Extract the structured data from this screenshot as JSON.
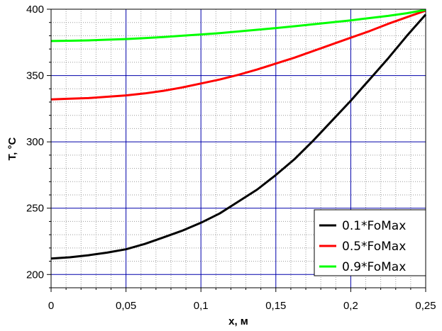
{
  "chart_data": {
    "type": "line",
    "xlabel": "x, м",
    "ylabel": "T, °C",
    "xlim": [
      0,
      0.25
    ],
    "ylim": [
      190,
      400
    ],
    "x_ticks": [
      "0",
      "0,05",
      "0,1",
      "0,15",
      "0,2",
      "0,25"
    ],
    "y_ticks": [
      "200",
      "250",
      "300",
      "350",
      "400"
    ],
    "grid": true,
    "legend_position": "bottom-right",
    "x": [
      0,
      0.0125,
      0.025,
      0.0375,
      0.05,
      0.0625,
      0.075,
      0.0875,
      0.1,
      0.1125,
      0.125,
      0.1375,
      0.15,
      0.1625,
      0.175,
      0.1875,
      0.2,
      0.2125,
      0.225,
      0.2375,
      0.25
    ],
    "series": [
      {
        "name": "0.1*FoMax",
        "color": "#000000",
        "values": [
          212,
          213,
          214.5,
          216.5,
          219,
          223,
          228,
          233,
          239,
          246,
          255,
          264,
          275,
          287,
          301,
          316,
          331,
          347,
          363,
          380,
          396
        ]
      },
      {
        "name": "0.5*FoMax",
        "color": "#ff0000",
        "values": [
          332,
          332.5,
          333,
          334,
          335,
          336.5,
          338.5,
          341,
          344,
          347,
          350.5,
          354.5,
          359,
          363.5,
          368.5,
          373.5,
          378.5,
          383.5,
          389,
          394,
          399
        ]
      },
      {
        "name": "0.9*FoMax",
        "color": "#00ff00",
        "values": [
          376,
          376.2,
          376.5,
          377,
          377.5,
          378.2,
          379,
          380,
          381,
          382,
          383.2,
          384.5,
          385.8,
          387.2,
          388.6,
          390.1,
          391.6,
          393.3,
          395,
          397,
          399.5
        ]
      }
    ]
  }
}
